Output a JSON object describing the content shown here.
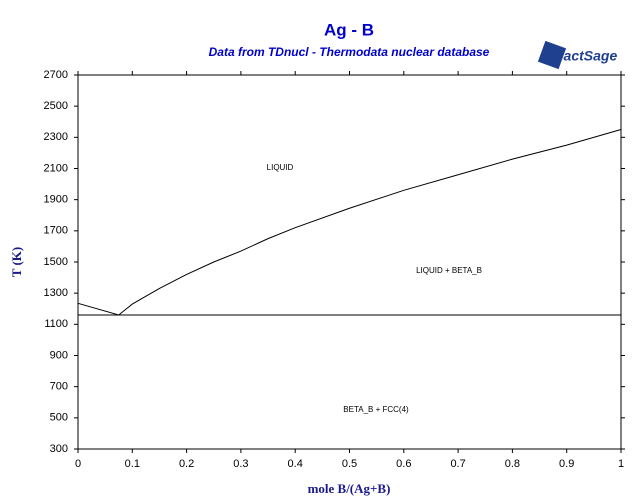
{
  "chart_data": {
    "type": "line",
    "title": "Ag - B",
    "subtitle": "Data from TDnucl - Thermodata nuclear database",
    "logo": "FactSage",
    "x_label": "mole B/(Ag+B)",
    "y_label": "T (K)",
    "xlim": [
      0,
      1
    ],
    "xticks": [
      0,
      0.1,
      0.2,
      0.3,
      0.4,
      0.5,
      0.6,
      0.7,
      0.8,
      0.9,
      1
    ],
    "ylim": [
      300,
      2700
    ],
    "yticks": [
      300,
      500,
      700,
      900,
      1100,
      1300,
      1500,
      1700,
      1900,
      2100,
      2300,
      2500,
      2700
    ],
    "series": [
      {
        "color": "#000000",
        "x": [
          0,
          0.075,
          0.1,
          0.15,
          0.2,
          0.25,
          0.3,
          0.35,
          0.4,
          0.5,
          0.6,
          0.7,
          0.8,
          0.9,
          1
        ],
        "values": [
          1235,
          1160,
          1230,
          1330,
          1420,
          1500,
          1570,
          1650,
          1720,
          1845,
          1960,
          2060,
          2160,
          2250,
          2350
        ]
      },
      {
        "color": "#000000",
        "x": [
          0,
          1
        ],
        "values": [
          1160,
          1160
        ]
      }
    ],
    "annotations": [
      "LIQUID",
      "LIQUID + BETA_B",
      "BETA_B + FCC(4)"
    ],
    "grid": false
  }
}
